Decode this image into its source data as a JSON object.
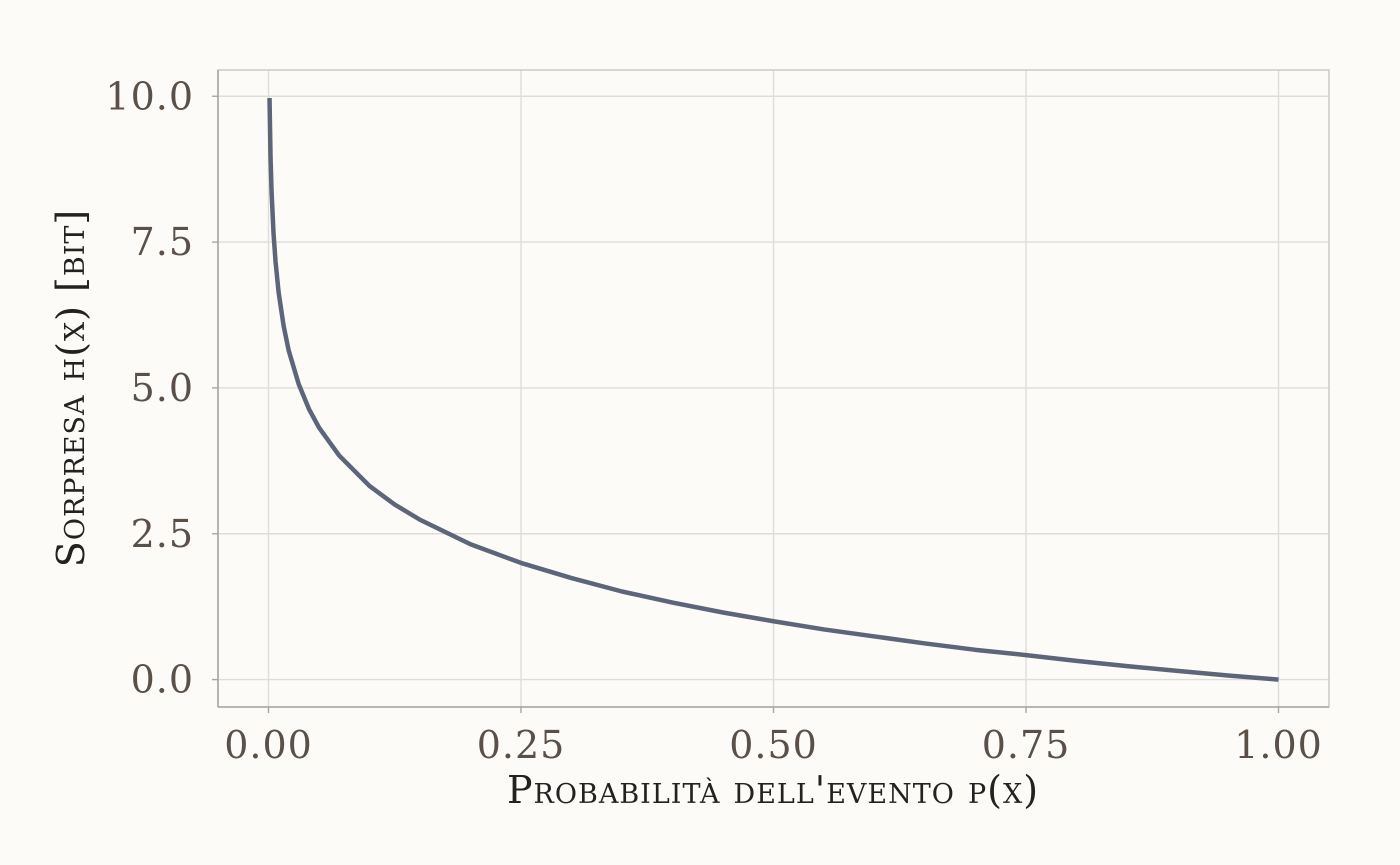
{
  "chart_data": {
    "type": "line",
    "title": "",
    "xlabel": "Probabilità dell'evento p(x)",
    "ylabel": "Sorpresa h(x) [bit]",
    "xlim": [
      -0.05,
      1.05
    ],
    "ylim": [
      -0.47,
      10.45
    ],
    "x_ticks": [
      0.0,
      0.25,
      0.5,
      0.75,
      1.0
    ],
    "x_tick_labels": [
      "0.00",
      "0.25",
      "0.50",
      "0.75",
      "1.00"
    ],
    "y_ticks": [
      0.0,
      2.5,
      5.0,
      7.5,
      10.0
    ],
    "y_tick_labels": [
      "0.0",
      "2.5",
      "5.0",
      "7.5",
      "10.0"
    ],
    "grid": true,
    "legend": "none",
    "line_color": "#5d6579",
    "series": [
      {
        "x": [
          0.001,
          0.002,
          0.003,
          0.005,
          0.007,
          0.01,
          0.015,
          0.02,
          0.03,
          0.04,
          0.05,
          0.07,
          0.1,
          0.125,
          0.15,
          0.2,
          0.25,
          0.3,
          0.35,
          0.4,
          0.45,
          0.5,
          0.55,
          0.6,
          0.65,
          0.7,
          0.75,
          0.8,
          0.85,
          0.9,
          0.95,
          1.0
        ],
        "y": [
          9.97,
          8.97,
          8.38,
          7.64,
          7.16,
          6.64,
          6.06,
          5.64,
          5.06,
          4.64,
          4.32,
          3.84,
          3.32,
          3.0,
          2.74,
          2.32,
          2.0,
          1.74,
          1.51,
          1.32,
          1.15,
          1.0,
          0.86,
          0.74,
          0.62,
          0.51,
          0.42,
          0.32,
          0.23,
          0.15,
          0.07,
          0.0
        ]
      }
    ]
  }
}
